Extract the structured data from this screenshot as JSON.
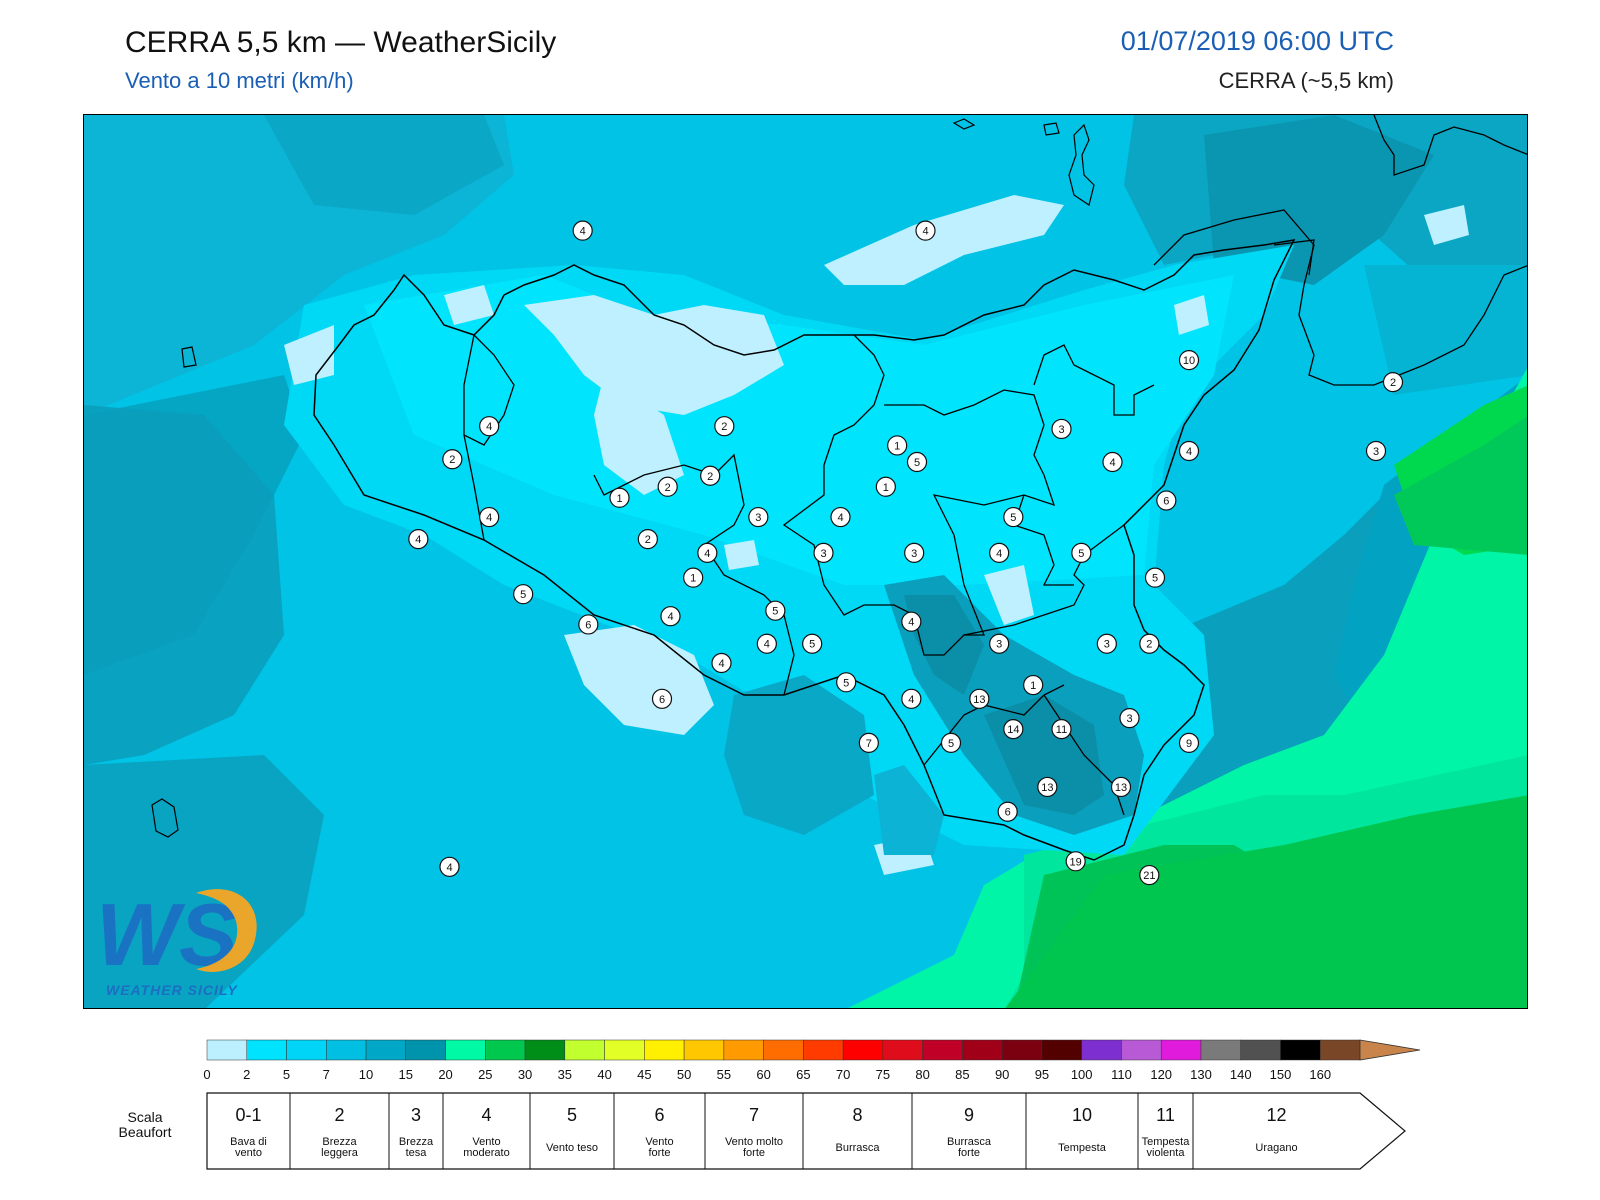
{
  "header": {
    "title": "CERRA 5,5 km — WeatherSicily",
    "subtitle": "Vento a 10 metri (km/h)",
    "datetime": "01/07/2019 06:00 UTC",
    "model": "CERRA (~5,5 km)"
  },
  "logo": {
    "letters": "WS",
    "text": "WEATHER SICILY"
  },
  "stations": [
    {
      "v": "4",
      "lon": 12.86,
      "lat": 38.68
    },
    {
      "v": "4",
      "lon": 14.07,
      "lat": 38.68
    },
    {
      "v": "10",
      "lon": 15.0,
      "lat": 38.21
    },
    {
      "v": "2",
      "lon": 15.72,
      "lat": 38.13
    },
    {
      "v": "4",
      "lon": 12.53,
      "lat": 37.97
    },
    {
      "v": "2",
      "lon": 13.36,
      "lat": 37.97
    },
    {
      "v": "3",
      "lon": 14.55,
      "lat": 37.96
    },
    {
      "v": "1",
      "lon": 13.97,
      "lat": 37.9
    },
    {
      "v": "2",
      "lon": 12.4,
      "lat": 37.85
    },
    {
      "v": "4",
      "lon": 15.0,
      "lat": 37.88
    },
    {
      "v": "3",
      "lon": 15.66,
      "lat": 37.88
    },
    {
      "v": "2",
      "lon": 13.31,
      "lat": 37.79
    },
    {
      "v": "5",
      "lon": 14.04,
      "lat": 37.84
    },
    {
      "v": "4",
      "lon": 14.73,
      "lat": 37.84
    },
    {
      "v": "2",
      "lon": 13.16,
      "lat": 37.75
    },
    {
      "v": "1",
      "lon": 13.93,
      "lat": 37.75
    },
    {
      "v": "1",
      "lon": 12.99,
      "lat": 37.71
    },
    {
      "v": "6",
      "lon": 14.92,
      "lat": 37.7
    },
    {
      "v": "4",
      "lon": 12.53,
      "lat": 37.64
    },
    {
      "v": "3",
      "lon": 13.48,
      "lat": 37.64
    },
    {
      "v": "4",
      "lon": 13.77,
      "lat": 37.64
    },
    {
      "v": "5",
      "lon": 14.38,
      "lat": 37.64
    },
    {
      "v": "4",
      "lon": 12.28,
      "lat": 37.56
    },
    {
      "v": "2",
      "lon": 13.09,
      "lat": 37.56
    },
    {
      "v": "4",
      "lon": 13.3,
      "lat": 37.51
    },
    {
      "v": "3",
      "lon": 13.71,
      "lat": 37.51
    },
    {
      "v": "3",
      "lon": 14.03,
      "lat": 37.51
    },
    {
      "v": "4",
      "lon": 14.33,
      "lat": 37.51
    },
    {
      "v": "5",
      "lon": 14.62,
      "lat": 37.51
    },
    {
      "v": "1",
      "lon": 13.25,
      "lat": 37.42
    },
    {
      "v": "5",
      "lon": 14.88,
      "lat": 37.42
    },
    {
      "v": "5",
      "lon": 12.65,
      "lat": 37.36
    },
    {
      "v": "5",
      "lon": 13.54,
      "lat": 37.3
    },
    {
      "v": "4",
      "lon": 13.17,
      "lat": 37.28
    },
    {
      "v": "6",
      "lon": 12.88,
      "lat": 37.25
    },
    {
      "v": "4",
      "lon": 14.02,
      "lat": 37.26
    },
    {
      "v": "4",
      "lon": 13.51,
      "lat": 37.18
    },
    {
      "v": "3",
      "lon": 14.33,
      "lat": 37.18
    },
    {
      "v": "5",
      "lon": 13.67,
      "lat": 37.18
    },
    {
      "v": "3",
      "lon": 14.71,
      "lat": 37.18
    },
    {
      "v": "2",
      "lon": 14.86,
      "lat": 37.18
    },
    {
      "v": "4",
      "lon": 13.35,
      "lat": 37.11
    },
    {
      "v": "1",
      "lon": 14.45,
      "lat": 37.03
    },
    {
      "v": "5",
      "lon": 13.79,
      "lat": 37.04
    },
    {
      "v": "6",
      "lon": 13.14,
      "lat": 36.98
    },
    {
      "v": "4",
      "lon": 14.02,
      "lat": 36.98
    },
    {
      "v": "13",
      "lon": 14.26,
      "lat": 36.98
    },
    {
      "v": "3",
      "lon": 14.79,
      "lat": 36.91
    },
    {
      "v": "14",
      "lon": 14.38,
      "lat": 36.87
    },
    {
      "v": "11",
      "lon": 14.55,
      "lat": 36.87
    },
    {
      "v": "7",
      "lon": 13.87,
      "lat": 36.82
    },
    {
      "v": "5",
      "lon": 14.16,
      "lat": 36.82
    },
    {
      "v": "9",
      "lon": 15.0,
      "lat": 36.82
    },
    {
      "v": "13",
      "lon": 14.5,
      "lat": 36.66
    },
    {
      "v": "13",
      "lon": 14.76,
      "lat": 36.66
    },
    {
      "v": "6",
      "lon": 14.36,
      "lat": 36.57
    },
    {
      "v": "19",
      "lon": 14.6,
      "lat": 36.39
    },
    {
      "v": "21",
      "lon": 14.86,
      "lat": 36.34
    },
    {
      "v": "4",
      "lon": 12.39,
      "lat": 36.37
    }
  ],
  "colorbar": {
    "colors": [
      "#bdf0ff",
      "#00e3ff",
      "#00d4f7",
      "#00bfe3",
      "#00a7c6",
      "#0094ac",
      "#00f9a5",
      "#00c84e",
      "#008e18",
      "#c1ff2f",
      "#e2ff26",
      "#ffef00",
      "#ffc700",
      "#ff9a00",
      "#ff6d00",
      "#ff3b00",
      "#ff0000",
      "#df0c1b",
      "#c00026",
      "#a00018",
      "#7b0010",
      "#520000",
      "#7e2fcf",
      "#b85ad6",
      "#e01bdc",
      "#7a7a7a",
      "#515151",
      "#000000",
      "#7a4628",
      "#c9844b"
    ],
    "ticks": [
      "0",
      "2",
      "5",
      "7",
      "10",
      "15",
      "20",
      "25",
      "30",
      "35",
      "40",
      "45",
      "50",
      "55",
      "60",
      "65",
      "70",
      "75",
      "80",
      "85",
      "90",
      "95",
      "100",
      "110",
      "120",
      "130",
      "140",
      "150",
      "160"
    ]
  },
  "beaufort": {
    "label_line1": "Scala",
    "label_line2": "Beaufort",
    "cells": [
      {
        "num": "0-1",
        "desc": [
          "Bava di",
          "vento"
        ]
      },
      {
        "num": "2",
        "desc": [
          "Brezza",
          "leggera"
        ]
      },
      {
        "num": "3",
        "desc": [
          "Brezza",
          "tesa"
        ]
      },
      {
        "num": "4",
        "desc": [
          "Vento",
          "moderato"
        ]
      },
      {
        "num": "5",
        "desc": [
          "Vento teso"
        ]
      },
      {
        "num": "6",
        "desc": [
          "Vento",
          "forte"
        ]
      },
      {
        "num": "7",
        "desc": [
          "Vento molto",
          "forte"
        ]
      },
      {
        "num": "8",
        "desc": [
          "Burrasca"
        ]
      },
      {
        "num": "9",
        "desc": [
          "Burrasca",
          "forte"
        ]
      },
      {
        "num": "10",
        "desc": [
          "Tempesta"
        ]
      },
      {
        "num": "11",
        "desc": [
          "Tempesta",
          "violenta"
        ]
      },
      {
        "num": "12",
        "desc": [
          "Uragano"
        ]
      }
    ]
  }
}
